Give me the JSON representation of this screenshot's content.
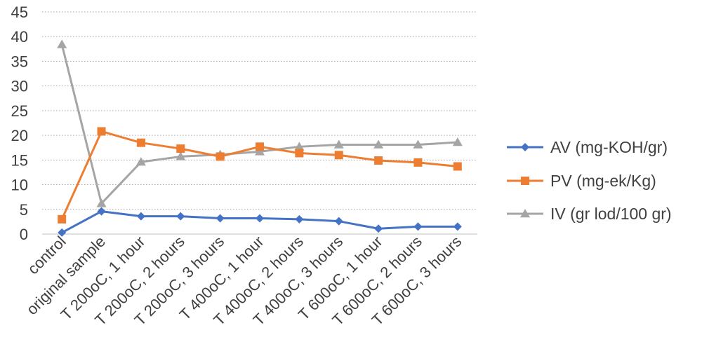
{
  "chart_data": {
    "type": "line",
    "categories": [
      "control",
      "original sample",
      "T 200oC, 1 hour",
      "T 200oC, 2 hours",
      "T 200oC, 3 hours",
      "T 400oC, 1 hour",
      "T 400oC, 2 hours",
      "T 400oC, 3 hours",
      "T 600oC, 1 hour",
      "T 600oC, 2 hours",
      "T 600oC, 3 hours"
    ],
    "ylim": [
      0,
      45
    ],
    "yticks": [
      0,
      5,
      10,
      15,
      20,
      25,
      30,
      35,
      40,
      45
    ],
    "grid": true,
    "legend_position": "right",
    "series": [
      {
        "name": "AV (mg-KOH/gr)",
        "color": "#4472c4",
        "marker": "diamond",
        "values": [
          0.3,
          4.6,
          3.6,
          3.6,
          3.2,
          3.2,
          3.0,
          2.6,
          1.1,
          1.5,
          1.5
        ]
      },
      {
        "name": "PV (mg-ek/Kg)",
        "color": "#ed7d31",
        "marker": "square",
        "values": [
          3.0,
          20.8,
          18.5,
          17.3,
          15.7,
          17.7,
          16.4,
          16.0,
          14.9,
          14.5,
          13.7
        ]
      },
      {
        "name": "IV (gr lod/100 gr)",
        "color": "#a5a5a5",
        "marker": "triangle",
        "values": [
          38.4,
          6.2,
          14.6,
          15.7,
          16.1,
          16.7,
          17.7,
          18.1,
          18.1,
          18.1,
          18.6
        ]
      }
    ]
  }
}
